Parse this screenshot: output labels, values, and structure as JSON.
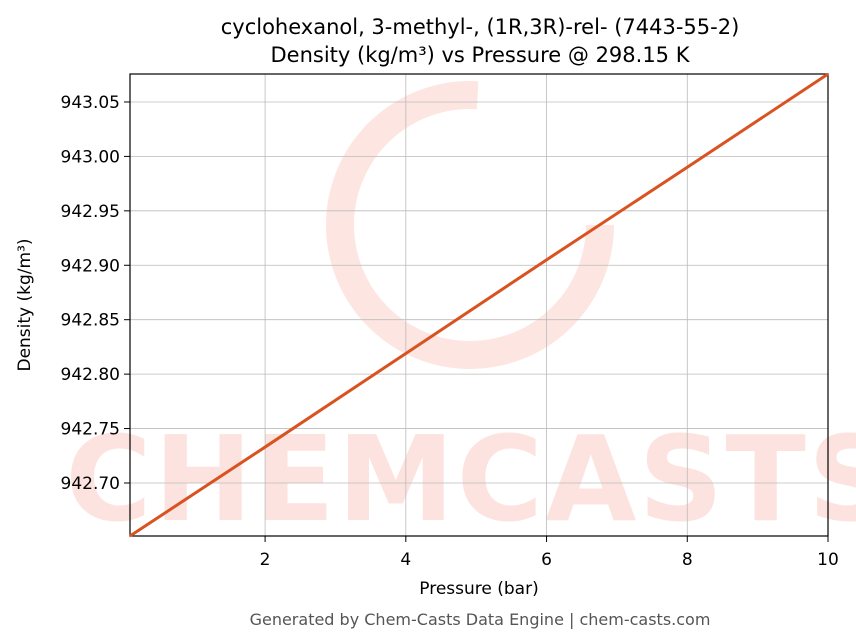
{
  "chart_data": {
    "type": "line",
    "title": "cyclohexanol, 3-methyl-, (1R,3R)-rel- (7443-55-2)",
    "subtitle": "Density (kg/m³) vs Pressure @ 298.15 K",
    "x_label": "Pressure (bar)",
    "y_label": "Density (kg/m³)",
    "footer": "Generated by Chem-Casts Data Engine | chem-casts.com",
    "watermark": "CHEMCASTS",
    "x": [
      0.08,
      2,
      4,
      6,
      8,
      10
    ],
    "series": [
      {
        "name": "Density",
        "color": "#d95321",
        "values": [
          942.6513,
          942.733,
          942.819,
          942.905,
          942.99,
          943.0757
        ]
      }
    ],
    "xlim": [
      0.08,
      10
    ],
    "ylim": [
      942.6513,
      943.0757
    ],
    "xticks": [
      2,
      4,
      6,
      8,
      10
    ],
    "yticks": [
      {
        "value": 942.7,
        "label": "942.70"
      },
      942.75,
      {
        "value": 942.8,
        "label": "942.80"
      },
      942.85,
      {
        "value": 942.9,
        "label": "942.90"
      },
      942.95,
      {
        "value": 943.0,
        "label": "943.00"
      },
      943.05
    ],
    "grid": true
  }
}
